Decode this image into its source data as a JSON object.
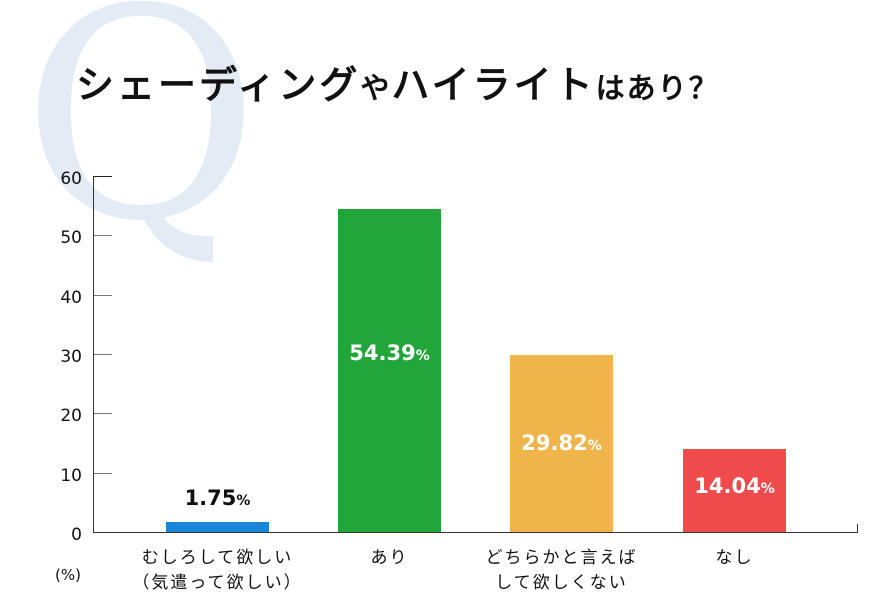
{
  "watermark": "Q",
  "title": {
    "parts": [
      {
        "text": "シェーディング",
        "size": "big"
      },
      {
        "text": "や",
        "size": "small"
      },
      {
        "text": "ハイライト",
        "size": "big"
      },
      {
        "text": "はあり？",
        "size": "small"
      }
    ]
  },
  "axis": {
    "unit_label": "(%)",
    "y_ticks": [
      "0",
      "10",
      "20",
      "30",
      "40",
      "50",
      "60"
    ]
  },
  "colors": {
    "blue": "#1a86d9",
    "green": "#22a63a",
    "orange": "#f0b54a",
    "red": "#ef4a4c",
    "watermark": "#e3ebf4"
  },
  "chart_data": {
    "type": "bar",
    "title": "シェーディングやハイライトはあり？",
    "xlabel": "",
    "ylabel": "(%)",
    "ylim": [
      0,
      60
    ],
    "y_ticks": [
      0,
      10,
      20,
      30,
      40,
      50,
      60
    ],
    "grid": false,
    "legend": null,
    "categories": [
      "むしろして欲しい（気遣って欲しい）",
      "あり",
      "どちらかと言えばして欲しくない",
      "なし"
    ],
    "values": [
      1.75,
      54.39,
      29.82,
      14.04
    ],
    "bars": [
      {
        "label_lines": [
          "むしろして欲しい",
          "（気遣って欲しい）"
        ],
        "value": 1.75,
        "value_text": "1.75",
        "pct": "%",
        "color": "#1a86d9",
        "label_inside": false
      },
      {
        "label_lines": [
          "あり"
        ],
        "value": 54.39,
        "value_text": "54.39",
        "pct": "%",
        "color": "#22a63a",
        "label_inside": true
      },
      {
        "label_lines": [
          "どちらかと言えば",
          "して欲しくない"
        ],
        "value": 29.82,
        "value_text": "29.82",
        "pct": "%",
        "color": "#f0b54a",
        "label_inside": true
      },
      {
        "label_lines": [
          "なし"
        ],
        "value": 14.04,
        "value_text": "14.04",
        "pct": "%",
        "color": "#ef4a4c",
        "label_inside": true
      }
    ]
  }
}
